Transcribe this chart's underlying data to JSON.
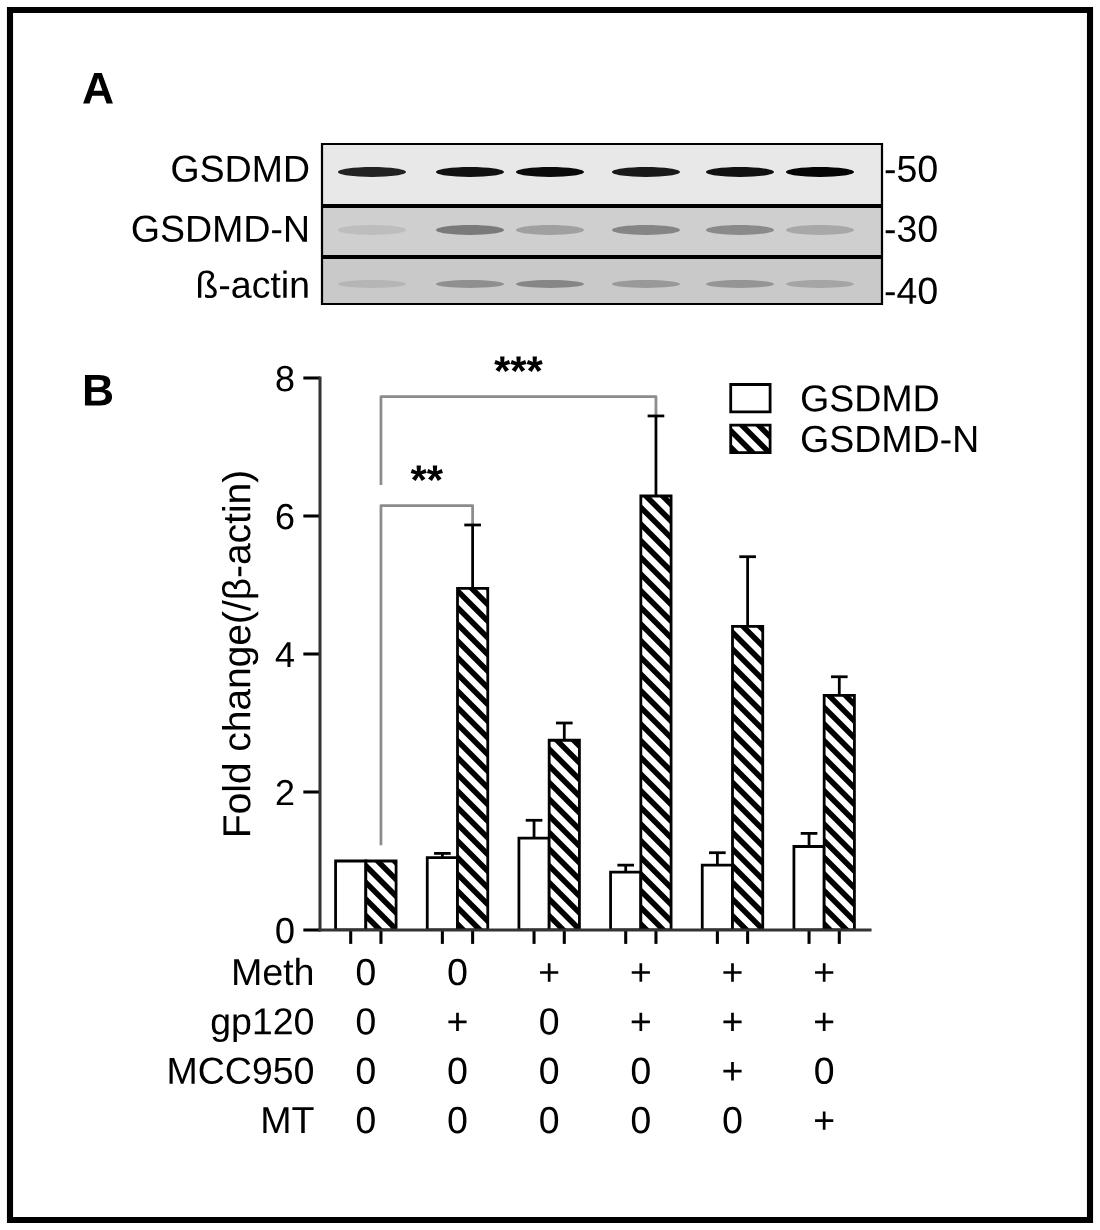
{
  "chart_data": {
    "type": "bar",
    "categories": [
      "0\n0\n0\n0",
      "0\n+\n0\n0",
      "+\n0\n0\n0",
      "+\n+\n0\n0",
      "+\n+\n+\n0",
      "+\n+\n0\n+"
    ],
    "series": [
      {
        "name": "GSDMD",
        "color": "#ffffff",
        "values": [
          1.0,
          1.05,
          1.33,
          0.84,
          0.94,
          1.21
        ],
        "errors": [
          null,
          [
            1.05,
            1.11
          ],
          [
            1.33,
            1.59
          ],
          [
            0.84,
            0.94
          ],
          [
            0.94,
            1.12
          ],
          [
            1.21,
            1.4
          ]
        ]
      },
      {
        "name": "GSDMD-N",
        "color": "#000000",
        "values": [
          1.0,
          4.95,
          2.75,
          6.29,
          4.4,
          3.4
        ],
        "errors": [
          null,
          [
            4.95,
            5.87
          ],
          [
            2.75,
            3.0
          ],
          [
            6.29,
            7.45
          ],
          [
            4.4,
            5.41
          ],
          [
            3.4,
            3.67
          ]
        ]
      }
    ],
    "ylabel": "Fold change(/β-actin)",
    "ylim": [
      0,
      8
    ],
    "yticks": [
      0,
      2,
      4,
      6,
      8
    ],
    "grid": false,
    "legend": "top right",
    "annotations": [
      "A",
      "GSDMD",
      "GSDMD-N",
      "ß-actin",
      "-50",
      "-30",
      "-40",
      "B",
      {
        "text": "**",
        "x": "0\n+\n0\n0",
        "y": 5.87
      },
      {
        "text": "***",
        "x": "+\n+\n0\n0",
        "y": 7.45
      },
      "Meth\ngp120\nMCC950\nMT"
    ]
  }
}
